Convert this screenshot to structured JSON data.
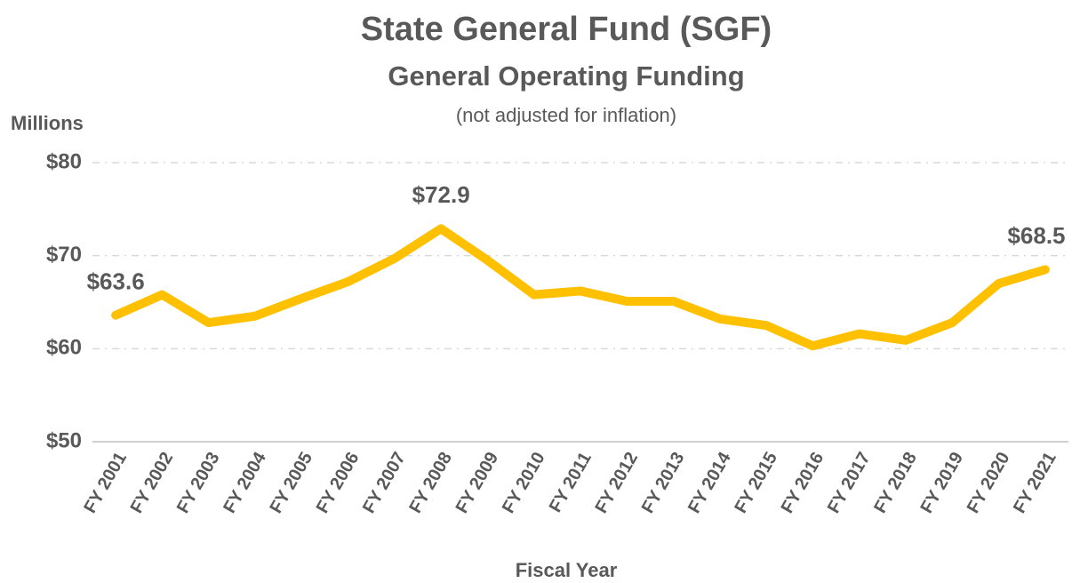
{
  "chart_data": {
    "type": "line",
    "title": "State General Fund (SGF)",
    "subtitle": "General Operating Funding",
    "note": "(not adjusted for inflation)",
    "y_label": "Millions",
    "x_label": "Fiscal Year",
    "categories": [
      "FY 2001",
      "FY 2002",
      "FY 2003",
      "FY 2004",
      "FY 2005",
      "FY 2006",
      "FY 2007",
      "FY 2008",
      "FY 2009",
      "FY 2010",
      "FY 2011",
      "FY 2012",
      "FY 2013",
      "FY 2014",
      "FY 2015",
      "FY 2016",
      "FY 2017",
      "FY 2018",
      "FY 2019",
      "FY 2020",
      "FY 2021"
    ],
    "series": [
      {
        "name": "SGF",
        "color": "#FFC000",
        "values": [
          63.6,
          65.8,
          62.8,
          63.5,
          65.4,
          67.2,
          69.7,
          72.9,
          69.5,
          65.8,
          66.2,
          65.1,
          65.1,
          63.2,
          62.5,
          60.3,
          61.6,
          60.9,
          62.8,
          67.0,
          68.5
        ],
        "value_labels": [
          "$63.6",
          null,
          null,
          null,
          null,
          null,
          null,
          "$72.9",
          null,
          null,
          null,
          null,
          null,
          null,
          null,
          null,
          null,
          null,
          null,
          null,
          "$68.5"
        ]
      }
    ],
    "ylim": [
      50,
      80
    ],
    "yticks": [
      {
        "value": 50,
        "label": "$50"
      },
      {
        "value": 60,
        "label": "$60"
      },
      {
        "value": 70,
        "label": "$70"
      },
      {
        "value": 80,
        "label": "$80"
      }
    ],
    "grid": true
  }
}
